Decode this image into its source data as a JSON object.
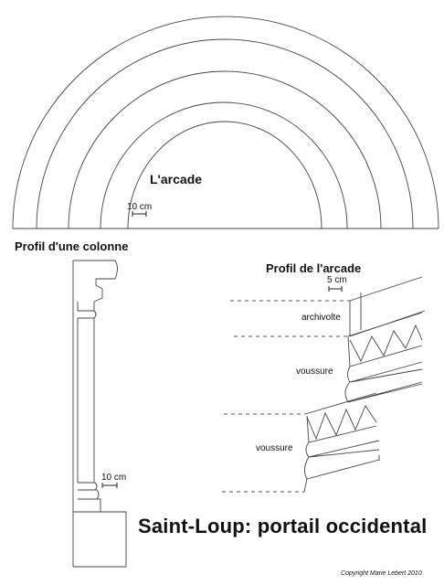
{
  "arcade": {
    "label": "L'arcade",
    "scale_label": "10 cm"
  },
  "colonne": {
    "heading": "Profil d'une colonne",
    "scale_label": "10 cm"
  },
  "profil_arcade": {
    "heading": "Profil de l'arcade",
    "scale_label": "5 cm",
    "parts": [
      "archivolte",
      "voussure",
      "voussure"
    ]
  },
  "title": "Saint-Loup: portail occidental",
  "copyright": "Copyright Marie Lebert 2010"
}
